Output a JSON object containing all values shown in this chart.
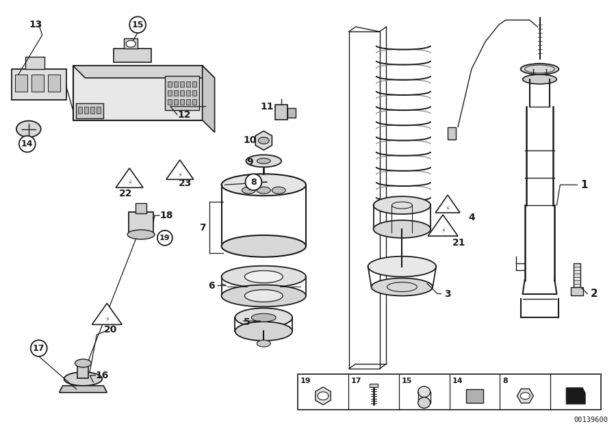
{
  "bg_color": "#ffffff",
  "line_color": "#1a1a1a",
  "part_number_code": "00139600",
  "fig_width": 9.0,
  "fig_height": 6.36,
  "dpi": 100
}
